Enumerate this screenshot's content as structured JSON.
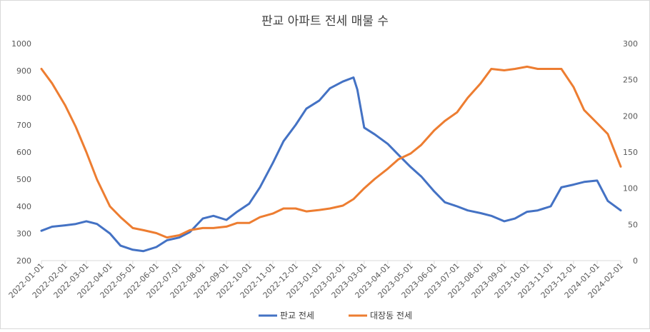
{
  "chart_data": {
    "type": "line",
    "title": "판교 아파트 전세 매물 수",
    "x_ticks": [
      "2022-01-01",
      "2022-02-01",
      "2022-03-01",
      "2022-04-01",
      "2022-05-01",
      "2022-06-01",
      "2022-07-01",
      "2022-08-01",
      "2022-09-01",
      "2022-10-01",
      "2022-11-01",
      "2022-12-01",
      "2023-01-01",
      "2023-02-01",
      "2023-03-01",
      "2023-04-01",
      "2023-05-01",
      "2023-06-01",
      "2023-07-01",
      "2023-08-01",
      "2023-09-01",
      "2023-10-01",
      "2023-11-01",
      "2023-12-01",
      "2024-01-01",
      "2024-02-01"
    ],
    "y_left": {
      "min": 200,
      "max": 1000,
      "ticks": [
        "200",
        "300",
        "400",
        "500",
        "600",
        "700",
        "800",
        "900",
        "1000"
      ]
    },
    "y_right": {
      "min": 0,
      "max": 300,
      "ticks": [
        "0",
        "50",
        "100",
        "150",
        "200",
        "250",
        "300"
      ]
    },
    "grid": false,
    "legend_position": "bottom",
    "series": [
      {
        "name": "판교 전세",
        "axis": "left",
        "color": "#4472C4",
        "x": [
          "2022-01-01",
          "2022-01-15",
          "2022-02-01",
          "2022-02-15",
          "2022-03-01",
          "2022-03-15",
          "2022-04-01",
          "2022-04-15",
          "2022-05-01",
          "2022-05-15",
          "2022-06-01",
          "2022-06-15",
          "2022-07-01",
          "2022-07-15",
          "2022-08-01",
          "2022-08-15",
          "2022-09-01",
          "2022-09-15",
          "2022-10-01",
          "2022-10-15",
          "2022-11-01",
          "2022-11-15",
          "2022-12-01",
          "2022-12-15",
          "2023-01-01",
          "2023-01-15",
          "2023-02-01",
          "2023-02-15",
          "2023-02-20",
          "2023-03-01",
          "2023-03-15",
          "2023-04-01",
          "2023-04-15",
          "2023-05-01",
          "2023-05-15",
          "2023-06-01",
          "2023-06-15",
          "2023-07-01",
          "2023-07-15",
          "2023-08-01",
          "2023-08-15",
          "2023-09-01",
          "2023-09-15",
          "2023-10-01",
          "2023-10-15",
          "2023-11-01",
          "2023-11-15",
          "2023-12-01",
          "2023-12-15",
          "2024-01-01",
          "2024-01-15",
          "2024-02-01"
        ],
        "values": [
          310,
          325,
          330,
          335,
          345,
          335,
          300,
          255,
          240,
          235,
          250,
          275,
          285,
          305,
          355,
          365,
          350,
          380,
          410,
          470,
          560,
          640,
          700,
          760,
          790,
          835,
          860,
          875,
          830,
          690,
          665,
          630,
          590,
          545,
          510,
          455,
          415,
          400,
          385,
          375,
          365,
          345,
          355,
          380,
          385,
          400,
          470,
          480,
          490,
          495,
          420,
          385
        ]
      },
      {
        "name": "대장동 전세",
        "axis": "right",
        "color": "#ED7D31",
        "x": [
          "2022-01-01",
          "2022-01-15",
          "2022-02-01",
          "2022-02-15",
          "2022-03-01",
          "2022-03-15",
          "2022-04-01",
          "2022-04-15",
          "2022-05-01",
          "2022-05-15",
          "2022-06-01",
          "2022-06-15",
          "2022-07-01",
          "2022-07-15",
          "2022-08-01",
          "2022-08-15",
          "2022-09-01",
          "2022-09-15",
          "2022-10-01",
          "2022-10-15",
          "2022-11-01",
          "2022-11-15",
          "2022-12-01",
          "2022-12-15",
          "2023-01-01",
          "2023-01-15",
          "2023-02-01",
          "2023-02-15",
          "2023-03-01",
          "2023-03-15",
          "2023-04-01",
          "2023-04-15",
          "2023-05-01",
          "2023-05-15",
          "2023-06-01",
          "2023-06-15",
          "2023-07-01",
          "2023-07-15",
          "2023-08-01",
          "2023-08-15",
          "2023-09-01",
          "2023-09-15",
          "2023-10-01",
          "2023-10-15",
          "2023-11-01",
          "2023-11-15",
          "2023-12-01",
          "2023-12-15",
          "2024-01-01",
          "2024-01-15",
          "2024-02-01"
        ],
        "values": [
          265,
          245,
          215,
          185,
          150,
          112,
          75,
          60,
          45,
          42,
          38,
          32,
          35,
          42,
          45,
          45,
          47,
          52,
          52,
          60,
          65,
          72,
          72,
          68,
          70,
          72,
          76,
          85,
          100,
          113,
          127,
          140,
          148,
          160,
          180,
          193,
          205,
          225,
          245,
          265,
          263,
          265,
          268,
          265,
          265,
          265,
          240,
          208,
          190,
          175,
          130
        ]
      }
    ]
  }
}
